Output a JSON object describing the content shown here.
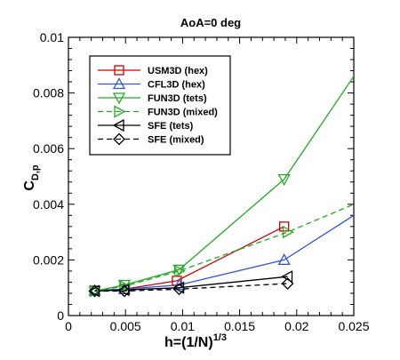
{
  "chart_data": {
    "type": "line",
    "title": "AoA=0 deg",
    "xlabel": {
      "base": "h=(1/N)",
      "sup": "1/3"
    },
    "ylabel": {
      "base": "C",
      "sub": "D,p"
    },
    "xlim": [
      0,
      0.025
    ],
    "ylim": [
      0,
      0.01
    ],
    "xticks": [
      "0",
      "0.005",
      "0.01",
      "0.015",
      "0.02",
      "0.025"
    ],
    "yticks": [
      "0",
      "0.002",
      "0.004",
      "0.006",
      "0.008",
      "0.01"
    ],
    "grid": false,
    "legend_position": "top-left",
    "series": [
      {
        "name": "USM3D (hex)",
        "color": "#cc0000",
        "marker": "square",
        "dash": "solid",
        "x": [
          0.0023,
          0.0049,
          0.0095,
          0.0189
        ],
        "y": [
          0.0009,
          0.00095,
          0.00125,
          0.0032
        ]
      },
      {
        "name": "CFL3D (hex)",
        "color": "#3355dd",
        "marker": "triangle-up",
        "dash": "solid",
        "x": [
          0.0023,
          0.0049,
          0.0097,
          0.0189,
          0.025
        ],
        "y": [
          0.0009,
          0.00095,
          0.0011,
          0.002,
          0.0036
        ]
      },
      {
        "name": "FUN3D (tets)",
        "color": "#22aa22",
        "marker": "triangle-down",
        "dash": "solid",
        "x": [
          0.0023,
          0.0049,
          0.0097,
          0.0189,
          0.025
        ],
        "y": [
          0.00088,
          0.0011,
          0.00165,
          0.0049,
          0.0086
        ]
      },
      {
        "name": "FUN3D (mixed)",
        "color": "#22aa22",
        "marker": "triangle-right",
        "dash": "dashed",
        "x": [
          0.0023,
          0.0049,
          0.0097,
          0.0192,
          0.025
        ],
        "y": [
          0.00088,
          0.00105,
          0.0016,
          0.003,
          0.004
        ]
      },
      {
        "name": "SFE (tets)",
        "color": "#000000",
        "marker": "triangle-left",
        "dash": "solid",
        "x": [
          0.0023,
          0.0049,
          0.0097,
          0.0192
        ],
        "y": [
          0.00088,
          0.00092,
          0.001,
          0.0014
        ]
      },
      {
        "name": "SFE (mixed)",
        "color": "#000000",
        "marker": "diamond",
        "dash": "dashed",
        "x": [
          0.0023,
          0.0049,
          0.0097,
          0.0192
        ],
        "y": [
          0.00088,
          0.00088,
          0.00095,
          0.00115
        ]
      }
    ]
  }
}
